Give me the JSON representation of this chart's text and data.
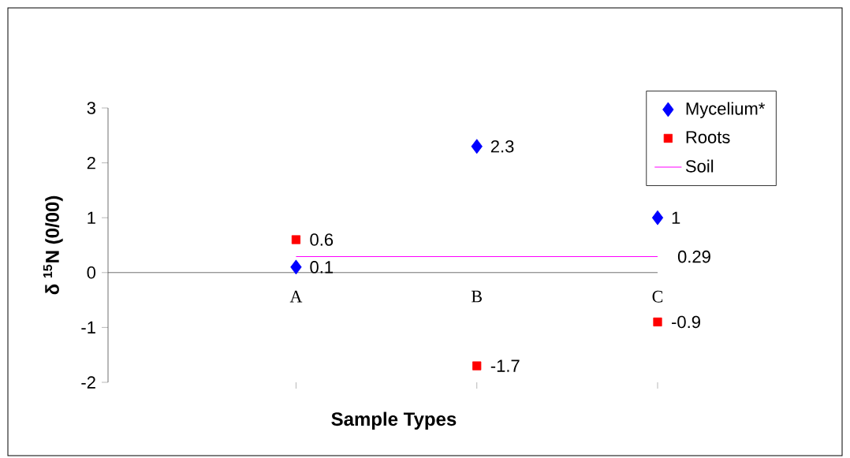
{
  "chart_data": {
    "type": "scatter",
    "xlabel": "Sample Types",
    "ylabel": "δ $^{15}$N (0/00)",
    "categories": [
      "A",
      "B",
      "C"
    ],
    "ylim": [
      -2,
      3
    ],
    "yticks": [
      -2,
      -1,
      0,
      1,
      2,
      3
    ],
    "grid": false,
    "legend": "top right",
    "series": [
      {
        "name": "Mycelium*",
        "color": "#0000ff",
        "marker": "diamond",
        "values": [
          0.1,
          2.3,
          1
        ],
        "value_labels": [
          "0.1",
          "2.3",
          "1"
        ]
      },
      {
        "name": "Roots",
        "color": "#ff0000",
        "marker": "square",
        "values": [
          0.6,
          -1.7,
          -0.9
        ],
        "value_labels": [
          "0.6",
          "-1.7",
          "-0.9"
        ]
      },
      {
        "name": "Soil",
        "type": "line",
        "color": "#ff00ff",
        "marker": "none",
        "values": [
          0.29,
          0.29,
          0.29
        ],
        "value_labels": [
          null,
          null,
          "0.29"
        ]
      }
    ]
  }
}
